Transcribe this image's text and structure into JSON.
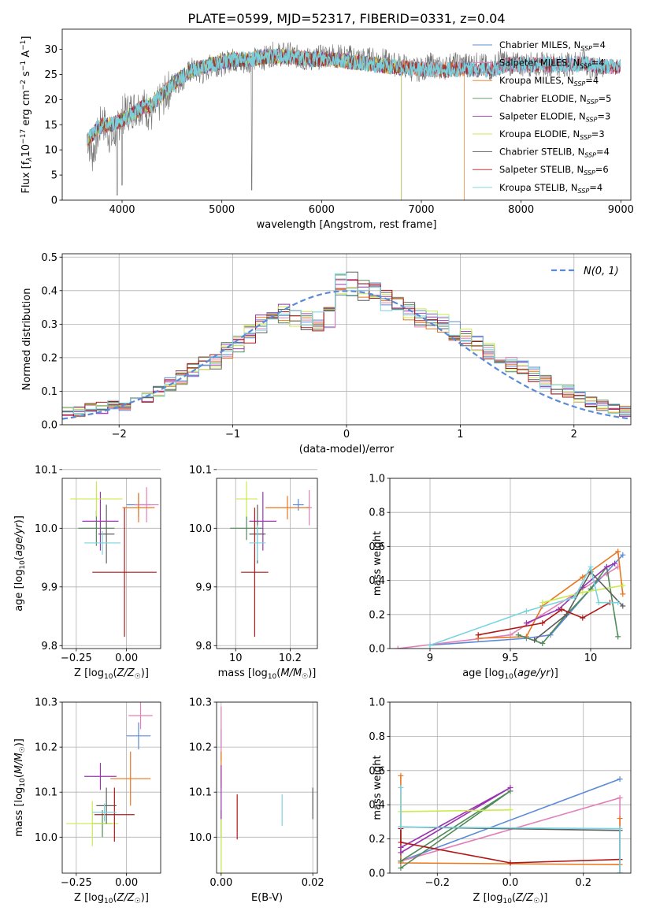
{
  "figure_title": "PLATE=0599, MJD=52317, FIBERID=0331, z=0.04",
  "colors": {
    "Chabrier MILES": "#5b8bd6",
    "Salpeter MILES": "#e37fb8",
    "Kroupa MILES": "#e8761f",
    "Chabrier ELODIE": "#4f8a58",
    "Salpeter ELODIE": "#9a34b3",
    "Kroupa ELODIE": "#c9ec4d",
    "Chabrier STELIB": "#5f5f5f",
    "Salpeter STELIB": "#b01818",
    "Kroupa STELIB": "#79d4df"
  },
  "chart_data": [
    {
      "id": "spectrum",
      "type": "line",
      "title": "PLATE=0599, MJD=52317, FIBERID=0331, z=0.04",
      "xlabel": "wavelength [Angstrom, rest frame]",
      "ylabel": "Flux [f_λ 10^-17 erg cm^-2 s^-1 A^-1]",
      "xlim": [
        3400,
        9100
      ],
      "ylim": [
        0,
        34
      ],
      "xticks": [
        4000,
        5000,
        6000,
        7000,
        8000,
        9000
      ],
      "yticks": [
        0,
        5,
        10,
        15,
        20,
        25,
        30
      ],
      "grid": false,
      "legend_position": "top-right",
      "x": [
        3650,
        3700,
        3800,
        3900,
        4000,
        4100,
        4200,
        4300,
        4400,
        4500,
        4600,
        4700,
        4800,
        4900,
        5000,
        5100,
        5200,
        5300,
        5400,
        5500,
        5600,
        5700,
        5800,
        5900,
        6000,
        6100,
        6200,
        6300,
        6400,
        6500,
        6600,
        6700,
        6800,
        6900,
        7000,
        7100,
        7200,
        7300,
        7400,
        7500,
        7600,
        7700,
        7800,
        7900,
        8000,
        8100,
        8200,
        8300,
        8400,
        8500,
        8600,
        8700,
        8800,
        8850
      ],
      "data_flux": [
        13,
        9,
        16,
        12,
        17,
        18,
        19,
        17,
        20,
        23,
        24,
        26,
        25,
        27,
        27,
        28,
        27,
        28,
        28,
        29,
        29,
        29,
        28,
        28,
        28.5,
        29,
        28.5,
        28.5,
        28,
        28,
        28,
        27,
        27,
        26,
        26,
        27,
        26,
        27,
        27,
        27,
        27,
        26,
        28,
        27,
        27,
        27,
        27,
        27,
        27,
        27,
        28,
        26,
        26,
        27
      ],
      "model_flux": [
        12,
        13,
        15,
        15,
        16,
        17,
        18.5,
        19,
        21,
        23,
        24.5,
        26,
        26.5,
        27,
        27.5,
        28,
        28,
        28,
        28.5,
        28.5,
        28.5,
        28.5,
        28.3,
        28,
        28,
        28,
        27.8,
        27.5,
        27.3,
        27,
        26.8,
        26.5,
        26.3,
        26.2,
        26,
        26,
        26,
        26,
        26,
        26,
        26,
        26,
        26.5,
        27,
        27,
        27,
        27,
        27,
        27,
        27,
        27.2,
        27,
        26.5,
        26.5
      ],
      "series": [
        {
          "name": "Chabrier MILES, N_SSP=4",
          "end": 9000
        },
        {
          "name": "Salpeter MILES, N_SSP=4",
          "end": 9000
        },
        {
          "name": "Kroupa MILES, N_SSP=4",
          "end": 7430
        },
        {
          "name": "Chabrier ELODIE, N_SSP=5",
          "end": 6800
        },
        {
          "name": "Salpeter ELODIE, N_SSP=3",
          "end": 6800
        },
        {
          "name": "Kroupa ELODIE, N_SSP=3",
          "end": 6800
        },
        {
          "name": "Chabrier STELIB, N_SSP=4",
          "end": 9000
        },
        {
          "name": "Salpeter STELIB, N_SSP=6",
          "end": 9000
        },
        {
          "name": "Kroupa STELIB, N_SSP=4",
          "end": 9000
        }
      ]
    },
    {
      "id": "residuals",
      "type": "line",
      "xlabel": "(data-model)/error",
      "ylabel": "Normed distribution",
      "xlim": [
        -2.5,
        2.5
      ],
      "ylim": [
        0,
        0.51
      ],
      "xticks": [
        -2,
        -1,
        0,
        1,
        2
      ],
      "yticks": [
        0.0,
        0.1,
        0.2,
        0.3,
        0.4,
        0.5
      ],
      "grid": true,
      "legend_position": "top-right",
      "reference_curve": "N(0, 1)",
      "bin_edges_start": -2.5,
      "bin_width": 0.1,
      "base_hist": [
        0.04,
        0.04,
        0.05,
        0.05,
        0.06,
        0.06,
        0.07,
        0.08,
        0.1,
        0.12,
        0.14,
        0.16,
        0.18,
        0.19,
        0.22,
        0.24,
        0.27,
        0.3,
        0.32,
        0.33,
        0.32,
        0.31,
        0.31,
        0.32,
        0.42,
        0.42,
        0.4,
        0.39,
        0.37,
        0.35,
        0.34,
        0.32,
        0.31,
        0.3,
        0.28,
        0.26,
        0.24,
        0.22,
        0.2,
        0.18,
        0.17,
        0.15,
        0.13,
        0.11,
        0.1,
        0.08,
        0.07,
        0.06,
        0.05,
        0.04
      ]
    },
    {
      "id": "age-vs-Z",
      "type": "scatter",
      "xlabel": "Z [log10(Z/Z☉)]",
      "ylabel": "age [log10(age/yr)]",
      "xlim": [
        -0.32,
        0.17
      ],
      "ylim": [
        9.795,
        10.085
      ],
      "xticks": [
        -0.25,
        0.0
      ],
      "xticklabels": [
        "−0.25",
        "0.00"
      ],
      "yticks": [
        9.8,
        9.9,
        10.0,
        10.1
      ],
      "grid": true,
      "points": [
        {
          "series": "Chabrier MILES",
          "x": 0.06,
          "y": 10.04,
          "xerr": 0.06,
          "yerr": 0.02
        },
        {
          "series": "Salpeter MILES",
          "x": 0.1,
          "y": 10.04,
          "xerr": 0.06,
          "yerr": 0.03
        },
        {
          "series": "Kroupa MILES",
          "x": 0.06,
          "y": 10.035,
          "xerr": 0.08,
          "yerr": 0.025
        },
        {
          "series": "Chabrier ELODIE",
          "x": -0.15,
          "y": 10.0,
          "xerr": 0.09,
          "yerr": 0.03
        },
        {
          "series": "Salpeter ELODIE",
          "x": -0.13,
          "y": 10.012,
          "xerr": 0.09,
          "yerr": 0.05
        },
        {
          "series": "Kroupa ELODIE",
          "x": -0.15,
          "y": 10.05,
          "xerr": 0.13,
          "yerr": 0.03
        },
        {
          "series": "Chabrier STELIB",
          "x": -0.1,
          "y": 9.99,
          "xerr": 0.04,
          "yerr": 0.05
        },
        {
          "series": "Salpeter STELIB",
          "x": -0.01,
          "y": 9.925,
          "xerr": 0.16,
          "yerr": 0.11
        },
        {
          "series": "Kroupa STELIB",
          "x": -0.12,
          "y": 9.975,
          "xerr": 0.09,
          "yerr": 0.02
        }
      ]
    },
    {
      "id": "age-vs-mass",
      "type": "scatter",
      "xlabel": "mass [log10(M/M☉)]",
      "xlim": [
        9.93,
        10.3
      ],
      "ylim": [
        9.795,
        10.085
      ],
      "xticks": [
        10.0,
        10.2
      ],
      "yticks": [
        9.8,
        9.9,
        10.0,
        10.1
      ],
      "grid": true,
      "points": [
        {
          "series": "Chabrier MILES",
          "x": 10.23,
          "y": 10.04,
          "xerr": 0.02,
          "yerr": 0.01
        },
        {
          "series": "Salpeter MILES",
          "x": 10.27,
          "y": 10.035,
          "xerr": 0.01,
          "yerr": 0.03
        },
        {
          "series": "Kroupa MILES",
          "x": 10.19,
          "y": 10.035,
          "xerr": 0.08,
          "yerr": 0.02
        },
        {
          "series": "Chabrier ELODIE",
          "x": 10.04,
          "y": 10.0,
          "xerr": 0.06,
          "yerr": 0.02
        },
        {
          "series": "Salpeter ELODIE",
          "x": 10.1,
          "y": 10.012,
          "xerr": 0.05,
          "yerr": 0.05
        },
        {
          "series": "Kroupa ELODIE",
          "x": 10.04,
          "y": 10.05,
          "xerr": 0.04,
          "yerr": 0.03
        },
        {
          "series": "Chabrier STELIB",
          "x": 10.08,
          "y": 9.99,
          "xerr": 0.03,
          "yerr": 0.05
        },
        {
          "series": "Salpeter STELIB",
          "x": 10.07,
          "y": 9.925,
          "xerr": 0.05,
          "yerr": 0.11
        },
        {
          "series": "Kroupa STELIB",
          "x": 10.08,
          "y": 9.975,
          "xerr": 0.03,
          "yerr": 0.03
        }
      ]
    },
    {
      "id": "massweight-vs-age",
      "type": "line",
      "xlabel": "age [log10(age/yr)]",
      "ylabel": "mass weight",
      "xlim": [
        8.75,
        10.25
      ],
      "ylim": [
        0,
        1
      ],
      "xticks": [
        9.0,
        9.5,
        10.0
      ],
      "yticks": [
        0.0,
        0.2,
        0.4,
        0.6,
        0.8,
        1.0
      ],
      "grid": true,
      "series": [
        {
          "name": "Chabrier MILES",
          "x": [
            9.0,
            9.6,
            9.75,
            10.0,
            10.2
          ],
          "y": [
            0.02,
            0.06,
            0.08,
            0.35,
            0.55
          ]
        },
        {
          "name": "Salpeter MILES",
          "x": [
            8.8,
            9.5,
            10.1,
            10.17
          ],
          "y": [
            0.0,
            0.08,
            0.44,
            0.48
          ]
        },
        {
          "name": "Kroupa MILES",
          "x": [
            9.3,
            9.6,
            9.7,
            9.95,
            10.17,
            10.2
          ],
          "y": [
            0.06,
            0.07,
            0.25,
            0.42,
            0.57,
            0.32
          ]
        },
        {
          "name": "Chabrier ELODIE",
          "x": [
            9.55,
            9.7,
            9.85,
            10.0,
            10.1,
            10.17
          ],
          "y": [
            0.08,
            0.03,
            0.2,
            0.35,
            0.48,
            0.07
          ]
        },
        {
          "name": "Salpeter ELODIE",
          "x": [
            9.6,
            9.8,
            9.95,
            10.1,
            10.15
          ],
          "y": [
            0.15,
            0.23,
            0.36,
            0.48,
            0.5
          ]
        },
        {
          "name": "Kroupa ELODIE",
          "x": [
            9.7,
            9.95,
            10.2
          ],
          "y": [
            0.27,
            0.33,
            0.37
          ]
        },
        {
          "name": "Chabrier STELIB",
          "x": [
            9.65,
            9.85,
            10.0,
            10.2
          ],
          "y": [
            0.05,
            0.2,
            0.45,
            0.25
          ]
        },
        {
          "name": "Salpeter STELIB",
          "x": [
            9.3,
            9.7,
            9.82,
            9.95,
            10.12
          ],
          "y": [
            0.08,
            0.15,
            0.23,
            0.18,
            0.27
          ]
        },
        {
          "name": "Kroupa STELIB",
          "x": [
            9.0,
            9.6,
            9.9,
            10.0,
            10.05,
            10.17
          ],
          "y": [
            0.02,
            0.22,
            0.3,
            0.48,
            0.27,
            0.27
          ]
        }
      ]
    },
    {
      "id": "mass-vs-Z",
      "type": "scatter",
      "xlabel": "Z [log10(Z/Z☉)]",
      "ylabel": "mass [log10(M/M☉)]",
      "xlim": [
        -0.32,
        0.17
      ],
      "ylim": [
        9.92,
        10.3
      ],
      "xticks": [
        -0.25,
        0.0
      ],
      "xticklabels": [
        "−0.25",
        "0.00"
      ],
      "yticks": [
        10.0,
        10.1,
        10.2,
        10.3
      ],
      "grid": true,
      "points": [
        {
          "series": "Chabrier MILES",
          "x": 0.06,
          "y": 10.225,
          "xerr": 0.06,
          "yerr": 0.03
        },
        {
          "series": "Salpeter MILES",
          "x": 0.07,
          "y": 10.27,
          "xerr": 0.06,
          "yerr": 0.03
        },
        {
          "series": "Kroupa MILES",
          "x": 0.02,
          "y": 10.13,
          "xerr": 0.1,
          "yerr": 0.06
        },
        {
          "series": "Chabrier ELODIE",
          "x": -0.12,
          "y": 10.03,
          "xerr": 0.05,
          "yerr": 0.03
        },
        {
          "series": "Salpeter ELODIE",
          "x": -0.13,
          "y": 10.135,
          "xerr": 0.08,
          "yerr": 0.03
        },
        {
          "series": "Kroupa ELODIE",
          "x": -0.17,
          "y": 10.03,
          "xerr": 0.13,
          "yerr": 0.05
        },
        {
          "series": "Chabrier STELIB",
          "x": -0.1,
          "y": 10.07,
          "xerr": 0.05,
          "yerr": 0.04
        },
        {
          "series": "Salpeter STELIB",
          "x": -0.06,
          "y": 10.05,
          "xerr": 0.1,
          "yerr": 0.06
        },
        {
          "series": "Kroupa STELIB",
          "x": -0.11,
          "y": 10.055,
          "xerr": 0.06,
          "yerr": 0.02
        }
      ]
    },
    {
      "id": "mass-vs-ebv",
      "type": "scatter",
      "xlabel": "E(B-V)",
      "xlim": [
        -0.001,
        0.021
      ],
      "ylim": [
        9.92,
        10.3
      ],
      "xticks": [
        0.0,
        0.02
      ],
      "xticklabels": [
        "0.00",
        "0.02"
      ],
      "yticks": [
        10.0,
        10.1,
        10.2,
        10.3
      ],
      "grid": true,
      "points": [
        {
          "series": "Chabrier MILES",
          "x": 0.0,
          "y": 10.22,
          "xerr": 0,
          "yerr": 0.02
        },
        {
          "series": "Salpeter MILES",
          "x": 0.0,
          "y": 10.23,
          "xerr": 0,
          "yerr": 0.06
        },
        {
          "series": "Kroupa MILES",
          "x": 0.0,
          "y": 10.15,
          "xerr": 0,
          "yerr": 0.04
        },
        {
          "series": "Chabrier ELODIE",
          "x": 0.0,
          "y": 10.03,
          "xerr": 0,
          "yerr": 0.03
        },
        {
          "series": "Salpeter ELODIE",
          "x": 0.0,
          "y": 10.1,
          "xerr": 0,
          "yerr": 0.06
        },
        {
          "series": "Kroupa ELODIE",
          "x": 0.0,
          "y": 9.98,
          "xerr": 0,
          "yerr": 0.06
        },
        {
          "series": "Chabrier STELIB",
          "x": 0.02,
          "y": 10.075,
          "xerr": 0,
          "yerr": 0.035
        },
        {
          "series": "Salpeter STELIB",
          "x": 0.0035,
          "y": 10.045,
          "xerr": 0,
          "yerr": 0.05
        },
        {
          "series": "Kroupa STELIB",
          "x": 0.0133,
          "y": 10.06,
          "xerr": 0,
          "yerr": 0.035
        }
      ]
    },
    {
      "id": "massweight-vs-Z",
      "type": "line",
      "xlabel": "Z [log10(Z/Z☉)]",
      "ylabel": "mass weight",
      "xlim": [
        -0.33,
        0.33
      ],
      "ylim": [
        0,
        1
      ],
      "xticks": [
        -0.2,
        0.0,
        0.2
      ],
      "xticklabels": [
        "−0.2",
        "0.0",
        "0.2"
      ],
      "yticks": [
        0.0,
        0.2,
        0.4,
        0.6,
        0.8,
        1.0
      ],
      "grid": true,
      "series": [
        {
          "name": "Chabrier MILES",
          "x": [
            -0.3,
            -0.3,
            0.3
          ],
          "y": [
            0.27,
            0.07,
            0.55
          ]
        },
        {
          "name": "Salpeter MILES",
          "x": [
            -0.3,
            0.3,
            0.3
          ],
          "y": [
            0.07,
            0.44,
            0.0
          ]
        },
        {
          "name": "Kroupa MILES",
          "x": [
            -0.3,
            -0.3,
            0.3,
            0.3
          ],
          "y": [
            0.57,
            0.06,
            0.05,
            0.32
          ]
        },
        {
          "name": "Chabrier ELODIE",
          "x": [
            -0.3,
            0.0,
            -0.3
          ],
          "y": [
            0.07,
            0.48,
            0.03
          ]
        },
        {
          "name": "Salpeter ELODIE",
          "x": [
            -0.3,
            0.0,
            -0.3
          ],
          "y": [
            0.15,
            0.5,
            0.12
          ]
        },
        {
          "name": "Kroupa ELODIE",
          "x": [
            -0.3,
            0.0
          ],
          "y": [
            0.36,
            0.37
          ]
        },
        {
          "name": "Chabrier STELIB",
          "x": [
            -0.3,
            0.3,
            0.3
          ],
          "y": [
            0.27,
            0.25,
            0.0
          ]
        },
        {
          "name": "Salpeter STELIB",
          "x": [
            -0.3,
            -0.3,
            0.0,
            0.3
          ],
          "y": [
            0.26,
            0.18,
            0.06,
            0.08
          ]
        },
        {
          "name": "Kroupa STELIB",
          "x": [
            -0.3,
            -0.3,
            0.3,
            0.3
          ],
          "y": [
            0.5,
            0.27,
            0.26,
            0.0
          ]
        }
      ]
    }
  ]
}
